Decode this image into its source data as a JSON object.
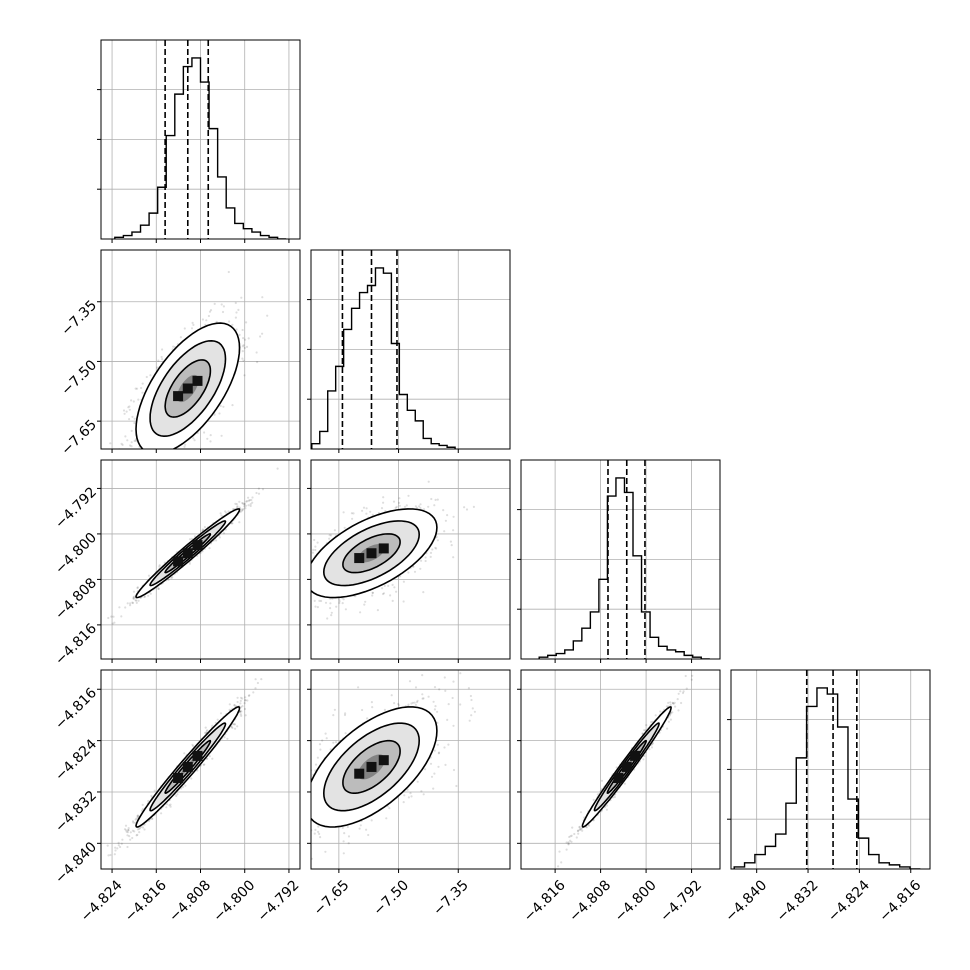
{
  "chart_data": {
    "type": "corner",
    "quantiles": [
      0.16,
      0.5,
      0.84
    ],
    "parameters": [
      {
        "range": [
          -4.826,
          -4.79
        ],
        "ticks": [
          -4.824,
          -4.816,
          -4.808,
          -4.8,
          -4.792
        ],
        "tick_labels": [
          "−4.824",
          "−4.816",
          "−4.808",
          "−4.800",
          "−4.792"
        ],
        "q16": -4.8144,
        "q50": -4.8103,
        "q84": -4.8066,
        "hist_min": -4.8235,
        "hist_max": -4.7925,
        "hist": [
          1,
          2,
          4,
          8,
          15,
          30,
          60,
          84,
          100,
          105,
          91,
          64,
          36,
          18,
          9,
          6,
          4,
          2,
          1,
          0
        ]
      },
      {
        "range": [
          -7.72,
          -7.22
        ],
        "ticks": [
          -7.65,
          -7.5,
          -7.35
        ],
        "tick_labels": [
          "−7.65",
          "−7.50",
          "−7.35"
        ],
        "q16": -7.641,
        "q50": -7.568,
        "q84": -7.504,
        "hist_min": -7.718,
        "hist_max": -7.358,
        "hist": [
          3,
          10,
          33,
          47,
          68,
          80,
          89,
          93,
          103,
          100,
          60,
          31,
          22,
          16,
          6,
          3,
          2,
          1
        ]
      },
      {
        "range": [
          -4.822,
          -4.787
        ],
        "ticks": [
          -4.816,
          -4.808,
          -4.8,
          -4.792
        ],
        "tick_labels": [
          "−4.816",
          "−4.808",
          "−4.800",
          "−4.792"
        ],
        "q16": -4.8067,
        "q50": -4.8034,
        "q84": -4.8002,
        "hist_min": -4.8188,
        "hist_max": -4.7888,
        "hist": [
          1,
          2,
          3,
          5,
          10,
          17,
          26,
          44,
          90,
          100,
          92,
          57,
          26,
          12,
          7,
          5,
          4,
          2,
          1,
          0
        ]
      },
      {
        "range": [
          -4.844,
          -4.813
        ],
        "ticks": [
          -4.84,
          -4.832,
          -4.824,
          -4.816
        ],
        "tick_labels": [
          "−4.840",
          "−4.832",
          "−4.824",
          "−4.816"
        ],
        "q16": -4.8322,
        "q50": -4.8281,
        "q84": -4.8244,
        "hist_min": -4.8435,
        "hist_max": -4.8145,
        "hist": [
          1,
          3,
          7,
          11,
          17,
          32,
          54,
          79,
          88,
          85,
          69,
          34,
          15,
          7,
          3,
          2,
          1,
          0
        ]
      }
    ],
    "pairs": [
      {
        "i": 1,
        "j": 0,
        "corr": 0.62
      },
      {
        "i": 2,
        "j": 0,
        "corr": 0.98
      },
      {
        "i": 2,
        "j": 1,
        "corr": 0.58
      },
      {
        "i": 3,
        "j": 0,
        "corr": 0.98
      },
      {
        "i": 3,
        "j": 1,
        "corr": 0.6
      },
      {
        "i": 3,
        "j": 2,
        "corr": 0.985
      }
    ],
    "grid": true,
    "contour_levels": 3
  }
}
